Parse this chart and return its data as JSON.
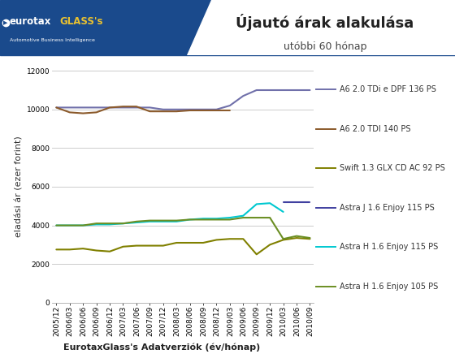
{
  "title": "Újautó árak alakulása",
  "subtitle": "utóbbi 60 hónap",
  "xlabel": "EurotaxGlass's Adatverziók (év/hónap)",
  "ylabel": "eladási ár (ezer forint)",
  "header_bg": "#1a4a8c",
  "ylim": [
    0,
    12000
  ],
  "yticks": [
    0,
    2000,
    4000,
    6000,
    8000,
    10000,
    12000
  ],
  "x_labels": [
    "2005/12",
    "2006/03",
    "2006/06",
    "2006/09",
    "2006/12",
    "2007/03",
    "2007/06",
    "2007/09",
    "2007/12",
    "2008/03",
    "2008/06",
    "2008/09",
    "2008/12",
    "2009/03",
    "2009/06",
    "2009/09",
    "2009/12",
    "2010/03",
    "2010/06",
    "2010/09"
  ],
  "series": [
    {
      "label": "A6 2.0 TDi e DPF 136 PS",
      "color": "#7070aa",
      "linewidth": 1.5,
      "values": [
        10100,
        10100,
        10100,
        10100,
        10100,
        10100,
        10100,
        10100,
        10000,
        10000,
        10000,
        10000,
        10000,
        10200,
        10700,
        11000,
        11000,
        11000,
        11000,
        11000
      ]
    },
    {
      "label": "A6 2.0 TDI 140 PS",
      "color": "#8B5A2B",
      "linewidth": 1.5,
      "values": [
        10100,
        9850,
        9800,
        9850,
        10100,
        10150,
        10150,
        9900,
        9900,
        9900,
        9950,
        9950,
        9950,
        9950,
        null,
        null,
        null,
        null,
        null,
        null
      ]
    },
    {
      "label": "Swift 1.3 GLX CD AC 92 PS",
      "color": "#808000",
      "linewidth": 1.5,
      "values": [
        2750,
        2750,
        2800,
        2700,
        2650,
        2900,
        2950,
        2950,
        2950,
        3100,
        3100,
        3100,
        3250,
        3300,
        3300,
        2500,
        3000,
        3250,
        3350,
        3300
      ]
    },
    {
      "label": "Astra J 1.6 Enjoy 115 PS",
      "color": "#4040a0",
      "linewidth": 1.5,
      "values": [
        null,
        null,
        null,
        null,
        null,
        null,
        null,
        null,
        null,
        null,
        null,
        null,
        null,
        null,
        null,
        null,
        null,
        5200,
        5200,
        5200
      ]
    },
    {
      "label": "Astra H 1.6 Enjoy 115 PS",
      "color": "#00c8d0",
      "linewidth": 1.5,
      "values": [
        4000,
        4000,
        4000,
        4050,
        4050,
        4100,
        4150,
        4200,
        4200,
        4200,
        4300,
        4350,
        4350,
        4400,
        4500,
        5100,
        5150,
        4700,
        null,
        null
      ]
    },
    {
      "label": "Astra H 1.6 Enjoy 105 PS",
      "color": "#6b8e23",
      "linewidth": 1.5,
      "values": [
        4000,
        4000,
        4000,
        4100,
        4100,
        4100,
        4200,
        4250,
        4250,
        4250,
        4300,
        4300,
        4300,
        4300,
        4400,
        4400,
        4400,
        3300,
        3450,
        3350
      ]
    }
  ],
  "background_color": "#ffffff",
  "plot_bg": "#ffffff",
  "grid_color": "#cccccc",
  "title_color": "#333333",
  "title_fontsize": 13,
  "subtitle_fontsize": 9,
  "axis_label_fontsize": 8,
  "tick_fontsize": 6.5,
  "legend_fontsize": 7
}
